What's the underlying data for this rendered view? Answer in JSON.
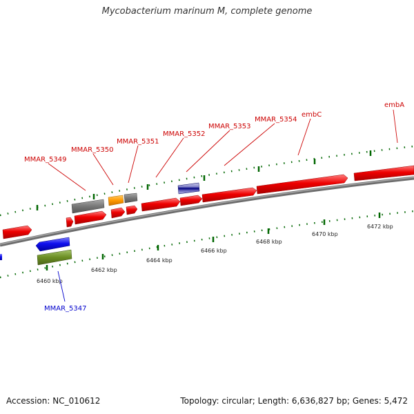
{
  "title": "Mycobacterium marinum M, complete genome",
  "footer": {
    "accession": "Accession: NC_010612",
    "topology": "Topology: circular; Length: 6,636,827 bp; Genes: 5,472"
  },
  "colors": {
    "backbone": "#808080",
    "forward_gene": "#ee0000",
    "reverse_gene": "#1010ee",
    "label_forward": "#cc0000",
    "label_reverse": "#0000cc",
    "tick": "#006600",
    "gray_feature": "#777777",
    "orange_feature": "#ff9900",
    "olive_feature": "#6b8e23"
  },
  "scale_labels": [
    "6460 kbp",
    "6462 kbp",
    "6464 kbp",
    "6466 kbp",
    "6468 kbp",
    "6470 kbp",
    "6472 kbp"
  ],
  "gene_labels": [
    {
      "text": "MMAR_5349",
      "strand": "forward"
    },
    {
      "text": "MMAR_5350",
      "strand": "forward"
    },
    {
      "text": "MMAR_5351",
      "strand": "forward"
    },
    {
      "text": "MMAR_5352",
      "strand": "forward"
    },
    {
      "text": "MMAR_5353",
      "strand": "forward"
    },
    {
      "text": "MMAR_5354",
      "strand": "forward"
    },
    {
      "text": "embC",
      "strand": "forward"
    },
    {
      "text": "embA",
      "strand": "forward"
    },
    {
      "text": "MMAR_5347",
      "strand": "reverse"
    }
  ]
}
